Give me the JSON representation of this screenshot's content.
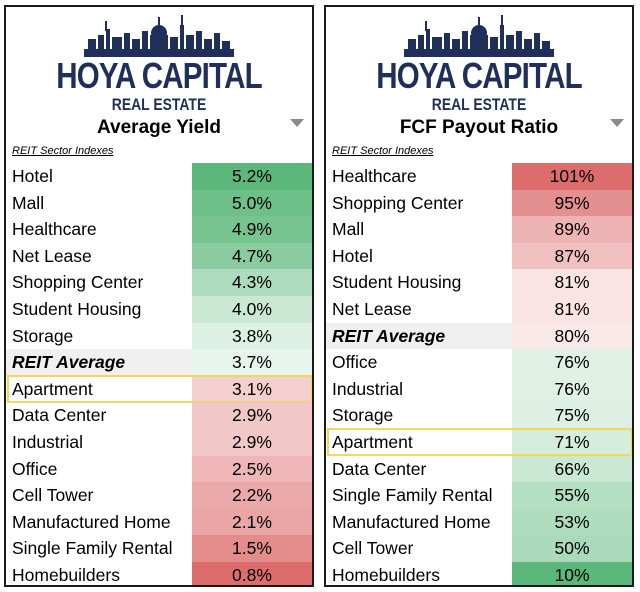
{
  "brand": {
    "line1": "HOYA CAPITAL",
    "line2": "REAL ESTATE"
  },
  "subtitle": "REIT Sector Indexes",
  "colors": {
    "navy": "#1f2f5a",
    "highlight": "#f2d65e",
    "good": "#5cb87a",
    "bad": "#dd6d6d"
  },
  "chart_data": [
    {
      "type": "table",
      "title": "Average Yield",
      "subtitle": "REIT Sector Indexes",
      "unit": "%",
      "highlighted": "Apartment",
      "rows": [
        {
          "name": "Hotel",
          "value": 5.2,
          "label": "5.2%"
        },
        {
          "name": "Mall",
          "value": 5.0,
          "label": "5.0%"
        },
        {
          "name": "Healthcare",
          "value": 4.9,
          "label": "4.9%"
        },
        {
          "name": "Net Lease",
          "value": 4.7,
          "label": "4.7%"
        },
        {
          "name": "Shopping Center",
          "value": 4.3,
          "label": "4.3%"
        },
        {
          "name": "Student Housing",
          "value": 4.0,
          "label": "4.0%"
        },
        {
          "name": "Storage",
          "value": 3.8,
          "label": "3.8%"
        },
        {
          "name": "REIT Average",
          "value": 3.7,
          "label": "3.7%",
          "average": true
        },
        {
          "name": "Apartment",
          "value": 3.1,
          "label": "3.1%"
        },
        {
          "name": "Data Center",
          "value": 2.9,
          "label": "2.9%"
        },
        {
          "name": "Industrial",
          "value": 2.9,
          "label": "2.9%"
        },
        {
          "name": "Office",
          "value": 2.5,
          "label": "2.5%"
        },
        {
          "name": "Cell Tower",
          "value": 2.2,
          "label": "2.2%"
        },
        {
          "name": "Manufactured Home",
          "value": 2.1,
          "label": "2.1%"
        },
        {
          "name": "Single Family Rental",
          "value": 1.5,
          "label": "1.5%"
        },
        {
          "name": "Homebuilders",
          "value": 0.8,
          "label": "0.8%"
        }
      ],
      "color_scale": "higher is green"
    },
    {
      "type": "table",
      "title": "FCF Payout Ratio",
      "subtitle": "REIT Sector Indexes",
      "unit": "%",
      "highlighted": "Apartment",
      "rows": [
        {
          "name": "Healthcare",
          "value": 101,
          "label": "101%"
        },
        {
          "name": "Shopping Center",
          "value": 95,
          "label": "95%"
        },
        {
          "name": "Mall",
          "value": 89,
          "label": "89%"
        },
        {
          "name": "Hotel",
          "value": 87,
          "label": "87%"
        },
        {
          "name": "Student Housing",
          "value": 81,
          "label": "81%"
        },
        {
          "name": "Net Lease",
          "value": 81,
          "label": "81%"
        },
        {
          "name": "REIT Average",
          "value": 80,
          "label": "80%",
          "average": true
        },
        {
          "name": "Office",
          "value": 76,
          "label": "76%"
        },
        {
          "name": "Industrial",
          "value": 76,
          "label": "76%"
        },
        {
          "name": "Storage",
          "value": 75,
          "label": "75%"
        },
        {
          "name": "Apartment",
          "value": 71,
          "label": "71%"
        },
        {
          "name": "Data Center",
          "value": 66,
          "label": "66%"
        },
        {
          "name": "Single Family Rental",
          "value": 55,
          "label": "55%"
        },
        {
          "name": "Manufactured Home",
          "value": 53,
          "label": "53%"
        },
        {
          "name": "Cell Tower",
          "value": 50,
          "label": "50%"
        },
        {
          "name": "Homebuilders",
          "value": 10,
          "label": "10%"
        }
      ],
      "color_scale": "higher is red"
    }
  ]
}
